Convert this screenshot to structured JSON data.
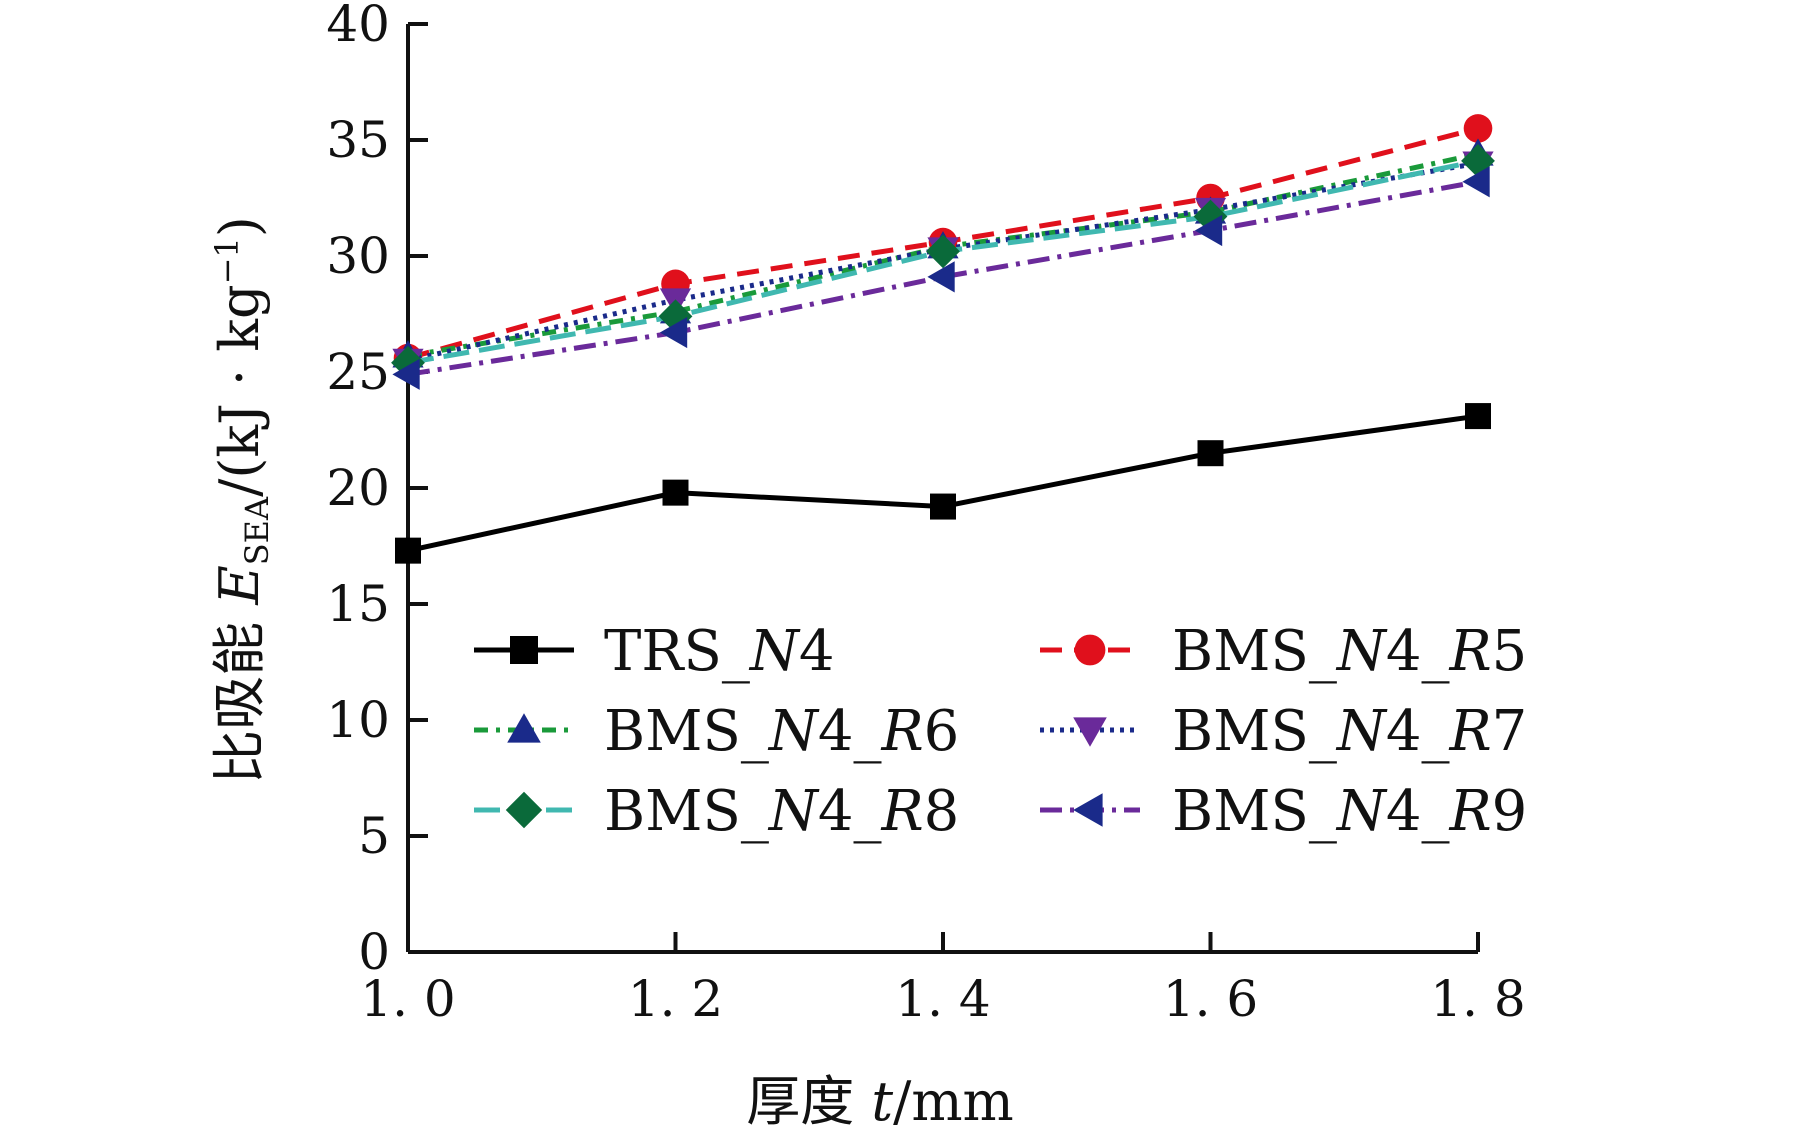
{
  "chart_data": {
    "type": "line",
    "title": "",
    "xlabel": {
      "prefix": "厚度 ",
      "var": "t",
      "suffix": "/mm"
    },
    "ylabel": {
      "prefix": "比吸能 ",
      "var": "E",
      "sub": "SEA",
      "unit_a": "/(kJ · kg",
      "sup": "−1",
      "unit_b": ")"
    },
    "x": [
      1.0,
      1.2,
      1.4,
      1.6,
      1.8
    ],
    "x_tick_labels": [
      "1. 0",
      "1. 2",
      "1. 4",
      "1. 6",
      "1. 8"
    ],
    "xlim": [
      1.0,
      1.8
    ],
    "ylim": [
      0,
      40
    ],
    "y_ticks": [
      0,
      5,
      10,
      15,
      20,
      25,
      30,
      35,
      40
    ],
    "y_tick_labels": [
      "0",
      "5",
      "10",
      "15",
      "20",
      "25",
      "30",
      "35",
      "40"
    ],
    "grid": false,
    "legend_position": "center",
    "series": [
      {
        "name": "TRS_N4",
        "name_parts": [
          "TRS_",
          "N",
          "4"
        ],
        "values": [
          17.3,
          19.8,
          19.2,
          21.5,
          23.1
        ],
        "color": "#000000",
        "dash": "",
        "marker": "square"
      },
      {
        "name": "BMS_N4_R5",
        "name_parts": [
          "BMS_",
          "N",
          "4_",
          "R",
          "5"
        ],
        "values": [
          25.6,
          28.8,
          30.6,
          32.5,
          35.5
        ],
        "color": "#e0101c",
        "dash": "22 12",
        "marker": "circle"
      },
      {
        "name": "BMS_N4_R6",
        "name_parts": [
          "BMS_",
          "N",
          "4_",
          "R",
          "6"
        ],
        "values": [
          25.7,
          27.6,
          30.4,
          31.9,
          34.4
        ],
        "color": "#1a9a3a",
        "dash": "14 8 4 8",
        "marker": "triangle-up"
      },
      {
        "name": "BMS_N4_R7",
        "name_parts": [
          "BMS_",
          "N",
          "4_",
          "R",
          "7"
        ],
        "values": [
          25.5,
          28.1,
          30.3,
          32.0,
          34.0
        ],
        "color": "#1a2a8a",
        "dash": "4 6",
        "marker": "triangle-down"
      },
      {
        "name": "BMS_N4_R8",
        "name_parts": [
          "BMS_",
          "N",
          "4_",
          "R",
          "8"
        ],
        "values": [
          25.4,
          27.4,
          30.2,
          31.7,
          34.1
        ],
        "color": "#40b8b0",
        "dash": "26 10",
        "marker": "diamond"
      },
      {
        "name": "BMS_N4_R9",
        "name_parts": [
          "BMS_",
          "N",
          "4_",
          "R",
          "9"
        ],
        "values": [
          24.9,
          26.7,
          29.1,
          31.1,
          33.2
        ],
        "color": "#6a2a9a",
        "dash": "22 8 4 8",
        "marker": "triangle-left"
      }
    ],
    "marker_colors": {
      "square": "#000000",
      "circle": "#e0101c",
      "triangle-up": "#1a2a8a",
      "triangle-down": "#6a2a9a",
      "diamond": "#0a6a3a",
      "triangle-left": "#1a2a8a"
    }
  }
}
